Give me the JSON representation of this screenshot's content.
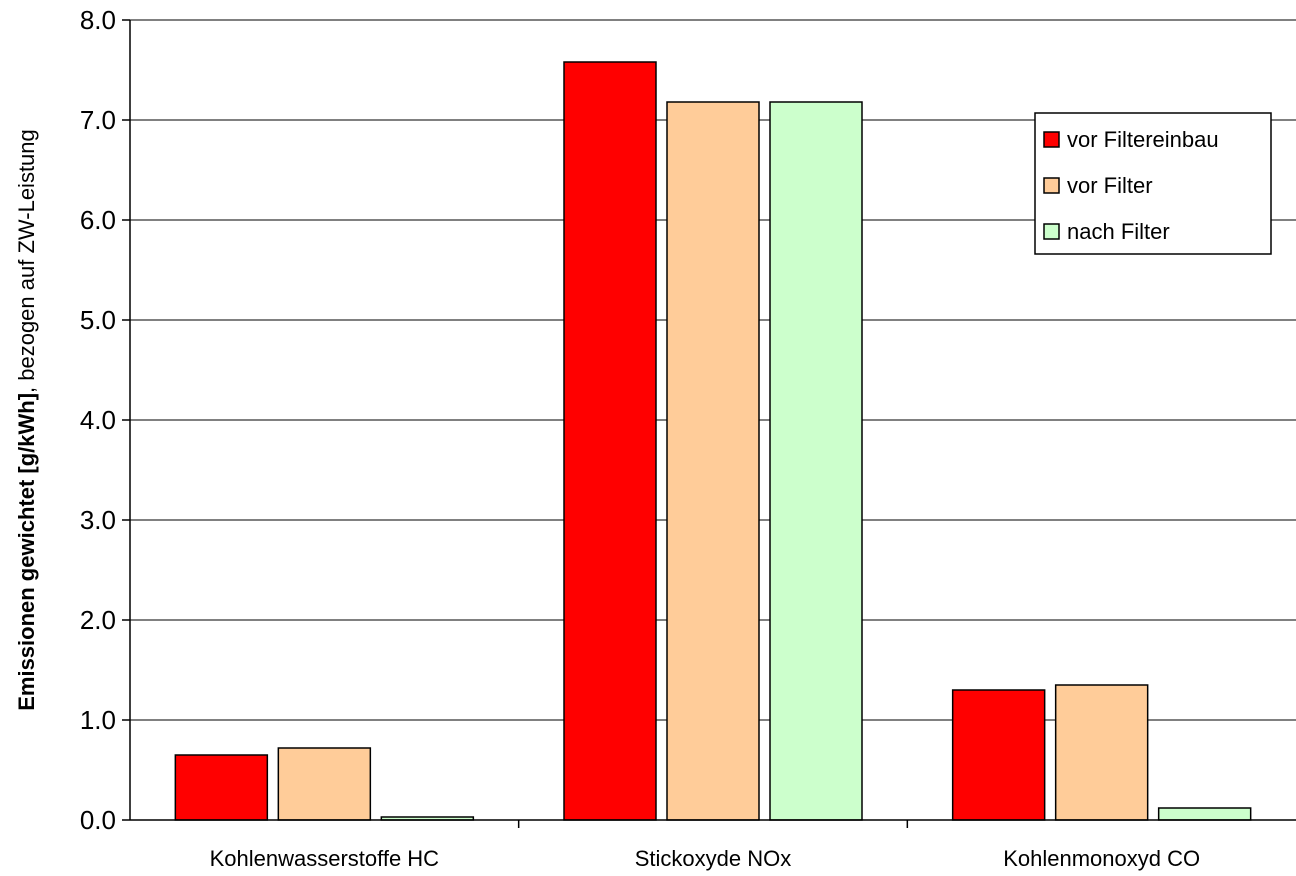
{
  "chart_data": {
    "type": "bar",
    "title": "",
    "xlabel": "",
    "ylabel_bold": "Emissionen gewichtet [g/kWh]",
    "ylabel_rest": ", bezogen auf ZW-Leistung",
    "categories": [
      "Kohlenwasserstoffe HC",
      "Stickoxyde NOx",
      "Kohlenmonoxyd CO"
    ],
    "series": [
      {
        "name": "vor Filtereinbau",
        "color": "#ff0000",
        "values": [
          0.65,
          7.58,
          1.3
        ]
      },
      {
        "name": "vor Filter",
        "color": "#ffcc99",
        "values": [
          0.72,
          7.18,
          1.35
        ]
      },
      {
        "name": "nach Filter",
        "color": "#ccffcc",
        "values": [
          0.03,
          7.18,
          0.12
        ]
      }
    ],
    "ylim": [
      0,
      8
    ],
    "yticks": [
      "0.0",
      "1.0",
      "2.0",
      "3.0",
      "4.0",
      "5.0",
      "6.0",
      "7.0",
      "8.0"
    ],
    "grid": true,
    "legend_position": "top-right"
  }
}
